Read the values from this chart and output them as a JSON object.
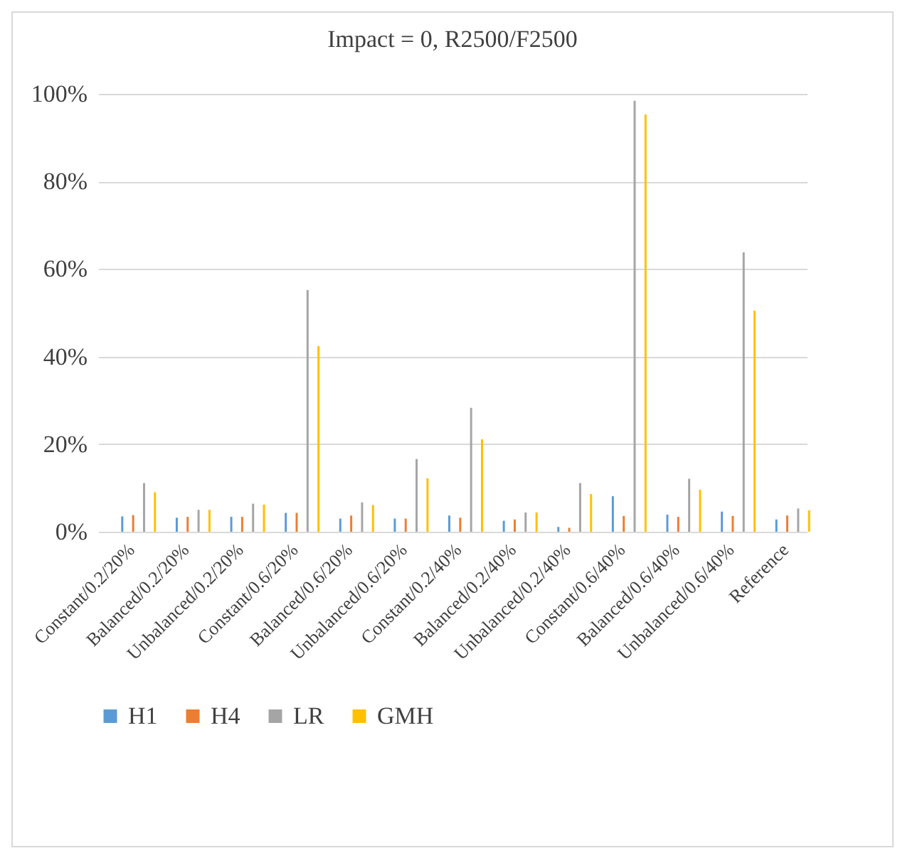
{
  "chart_data": {
    "type": "bar",
    "title": "Impact = 0, R2500/F2500",
    "categories": [
      "Constant/0.2/20%",
      "Balanced/0.2/20%",
      "Unbalanced/0.2/20%",
      "Constant/0.6/20%",
      "Balanced/0.6/20%",
      "Unbalanced/0.6/20%",
      "Constant/0.2/40%",
      "Balanced/0.2/40%",
      "Unbalanced/0.2/40%",
      "Constant/0.6/40%",
      "Balanced/0.6/40%",
      "Unbalanced/0.6/40%",
      "Reference"
    ],
    "series": [
      {
        "name": "H1",
        "color": "#5b9bd5",
        "values": [
          3.5,
          3.2,
          3.4,
          4.3,
          3.0,
          3.0,
          3.7,
          2.5,
          1.1,
          8.1,
          3.9,
          4.6,
          2.8
        ]
      },
      {
        "name": "H4",
        "color": "#ed7d31",
        "values": [
          3.8,
          3.4,
          3.4,
          4.3,
          3.7,
          3.0,
          3.2,
          2.8,
          0.9,
          3.6,
          3.4,
          3.6,
          3.7
        ]
      },
      {
        "name": "LR",
        "color": "#a5a5a5",
        "values": [
          11.1,
          5.0,
          6.4,
          55.2,
          6.7,
          16.6,
          28.3,
          4.4,
          11.1,
          98.4,
          12.1,
          63.8,
          5.3
        ]
      },
      {
        "name": "GMH",
        "color": "#ffc000",
        "values": [
          9.0,
          5.0,
          6.2,
          42.4,
          6.1,
          12.2,
          21.1,
          4.4,
          8.6,
          95.3,
          9.6,
          50.5,
          4.9
        ]
      }
    ],
    "ylim": [
      0,
      100
    ],
    "yticks": [
      {
        "value": 0,
        "label": "0%"
      },
      {
        "value": 20,
        "label": "20%"
      },
      {
        "value": 40,
        "label": "40%"
      },
      {
        "value": 60,
        "label": "60%"
      },
      {
        "value": 80,
        "label": "80%"
      },
      {
        "value": 100,
        "label": "100%"
      }
    ],
    "grid": "y",
    "legend": "bottom"
  }
}
